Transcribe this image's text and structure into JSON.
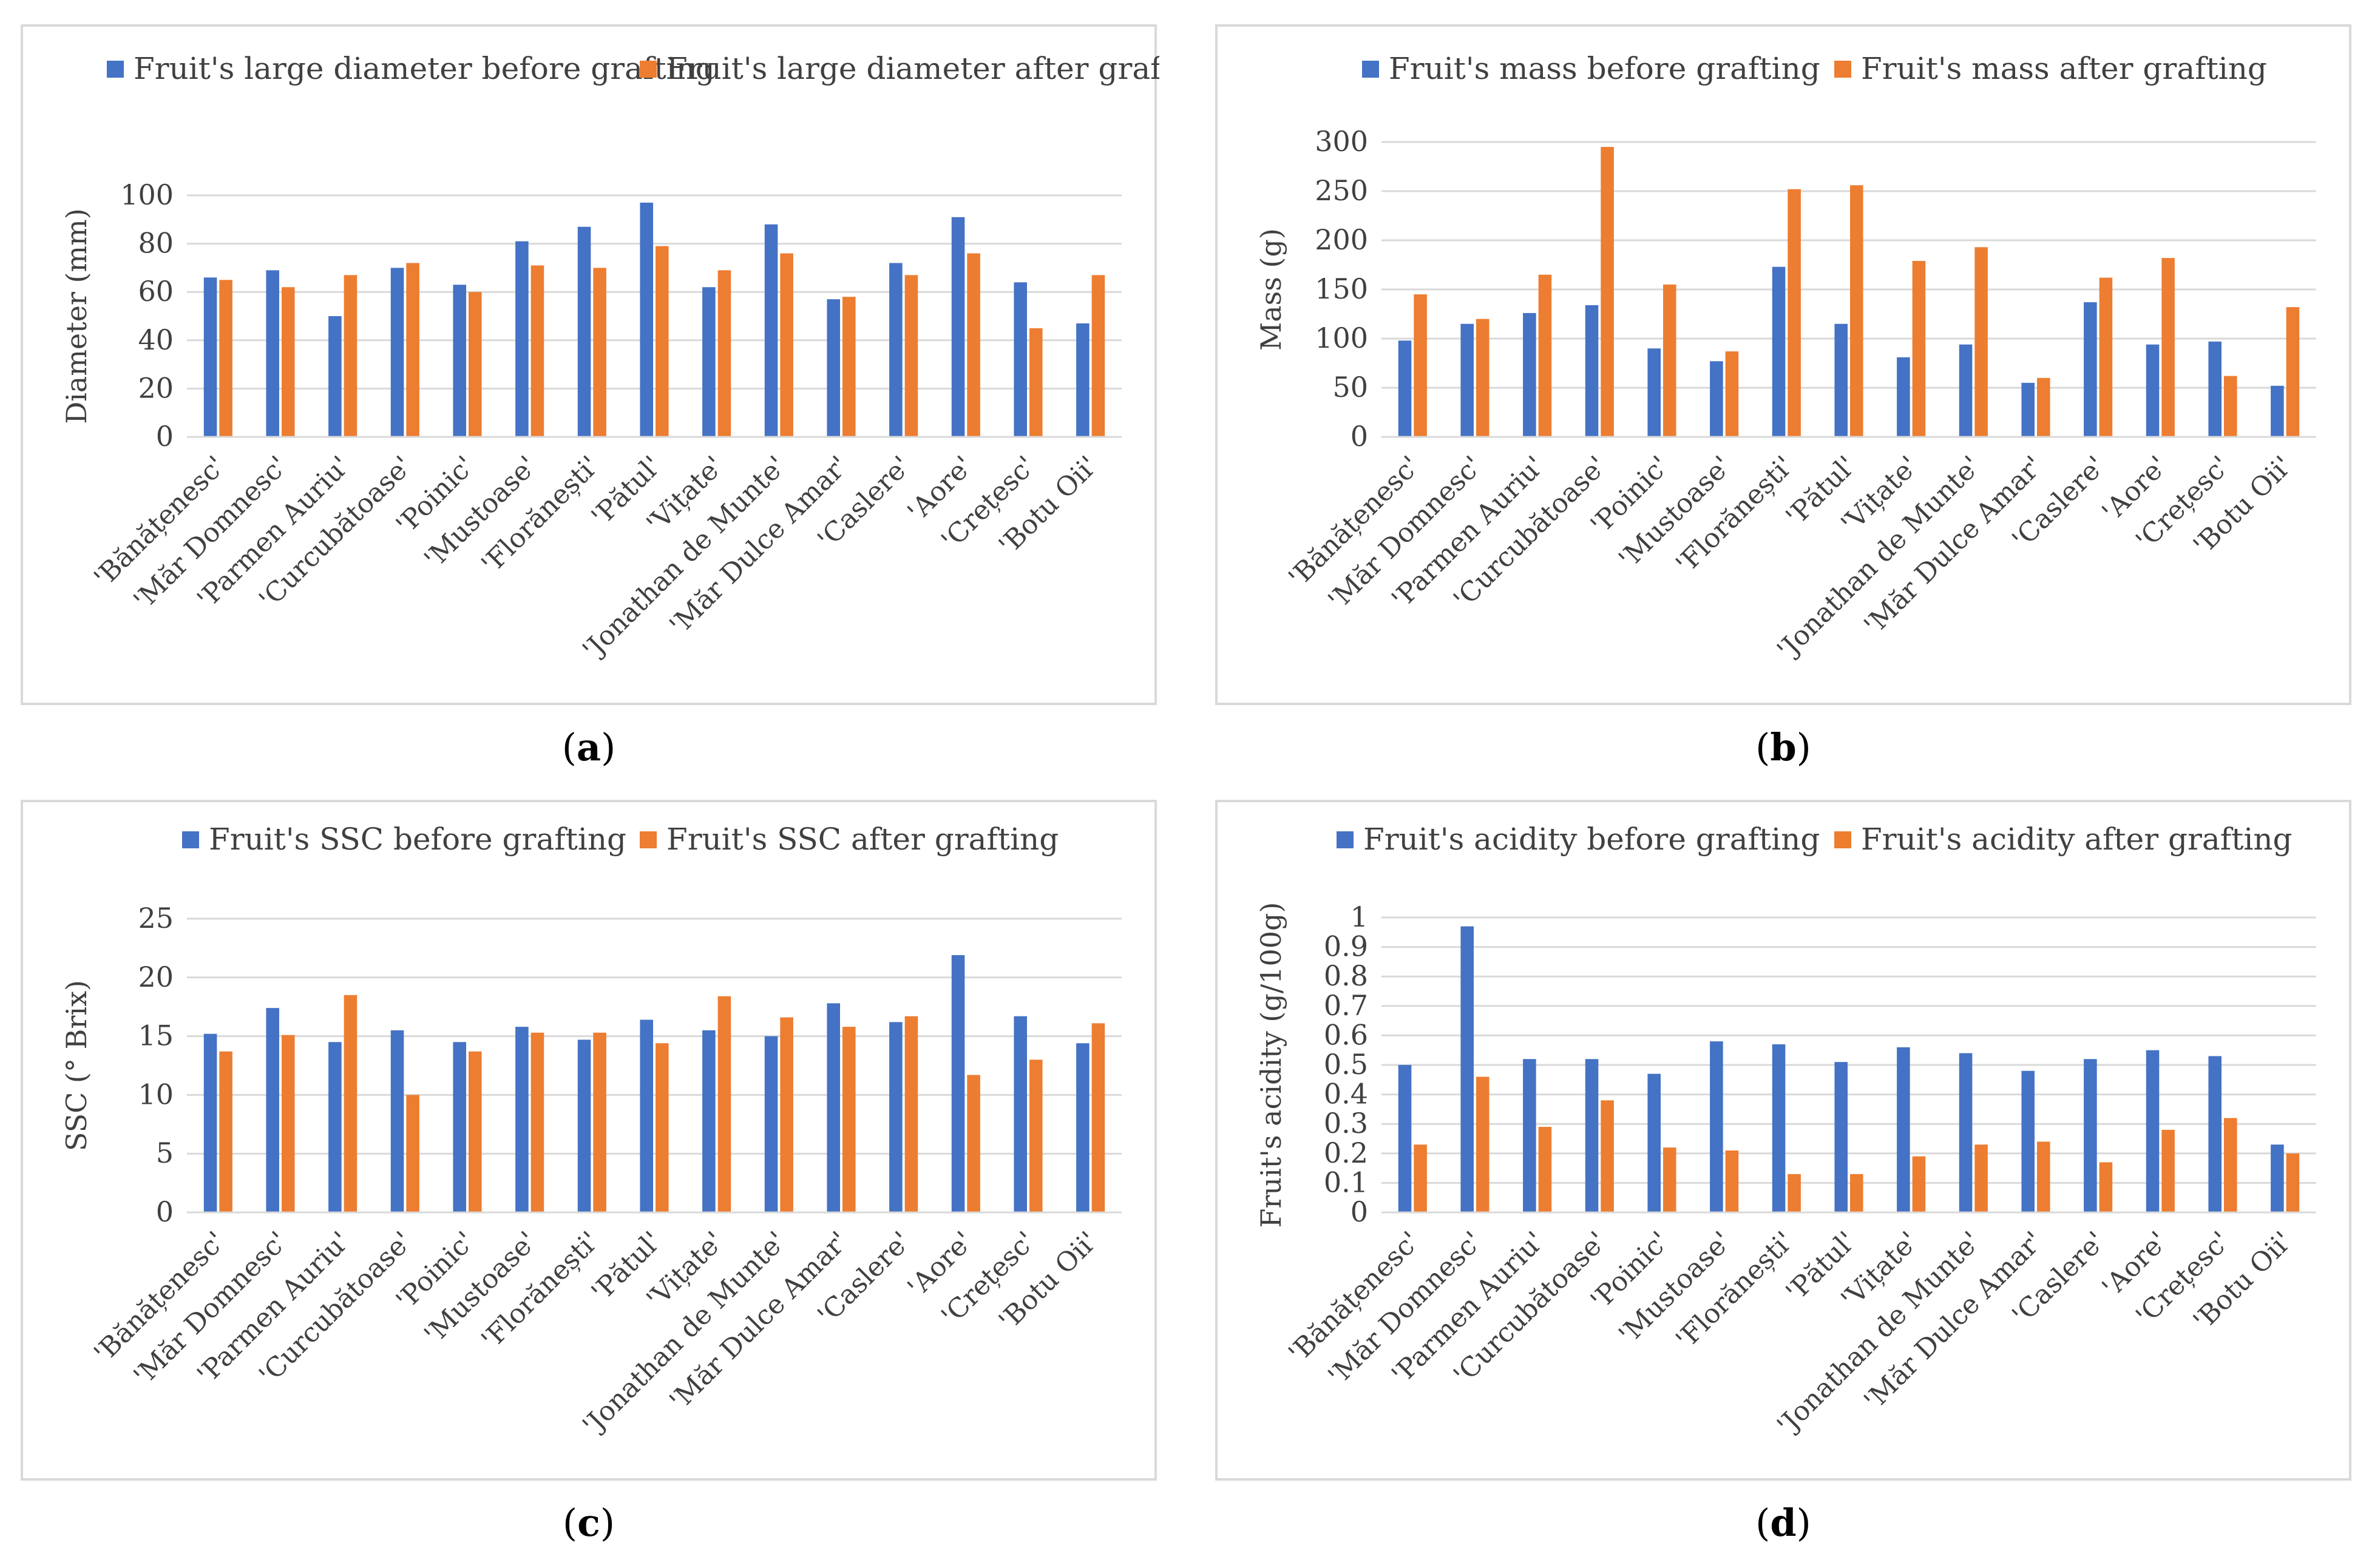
{
  "charts": [
    {
      "type": "bar",
      "panel_label": "a",
      "ylabel": "Diameter (mm)",
      "ylim": [
        0,
        100
      ],
      "yticks": [
        0,
        20,
        40,
        60,
        80,
        100
      ],
      "categories": [
        "'Bănățenesc'",
        "'Măr Domnesc'",
        "'Parmen Auriu'",
        "'Curcubătoase'",
        "'Poinic'",
        "'Mustoase'",
        "'Florănești'",
        "'Pătul'",
        "'Vițate'",
        "'Jonathan de Munte'",
        "'Măr Dulce Amar'",
        "'Caslere'",
        "'Aore'",
        "'Crețesc'",
        "'Botu Oii'"
      ],
      "series": [
        {
          "name": "Fruit's large diameter before grafting",
          "color": "#4472c4",
          "values": [
            66,
            69,
            50,
            70,
            63,
            81,
            87,
            97,
            62,
            88,
            57,
            72,
            91,
            64,
            47
          ]
        },
        {
          "name": "Fruit's large diameter after grafting",
          "color": "#ed7d31",
          "values": [
            65,
            62,
            67,
            72,
            60,
            71,
            70,
            79,
            69,
            76,
            58,
            67,
            76,
            45,
            67
          ]
        }
      ]
    },
    {
      "type": "bar",
      "panel_label": "b",
      "ylabel": "Mass (g)",
      "ylim": [
        0,
        300
      ],
      "yticks": [
        0,
        50,
        100,
        150,
        200,
        250,
        300
      ],
      "categories": [
        "'Bănățenesc'",
        "'Măr Domnesc'",
        "'Parmen Auriu'",
        "'Curcubătoase'",
        "'Poinic'",
        "'Mustoase'",
        "'Florănești'",
        "'Pătul'",
        "'Vițate'",
        "'Jonathan de Munte'",
        "'Măr Dulce Amar'",
        "'Caslere'",
        "'Aore'",
        "'Crețesc'",
        "'Botu Oii'"
      ],
      "series": [
        {
          "name": "Fruit's mass before grafting",
          "color": "#4472c4",
          "values": [
            98,
            115,
            126,
            134,
            90,
            77,
            173,
            115,
            81,
            94,
            55,
            137,
            94,
            97,
            52
          ]
        },
        {
          "name": "Fruit's mass after grafting",
          "color": "#ed7d31",
          "values": [
            145,
            120,
            165,
            295,
            155,
            87,
            252,
            256,
            179,
            193,
            60,
            162,
            182,
            62,
            132
          ]
        }
      ]
    },
    {
      "type": "bar",
      "panel_label": "c",
      "ylabel": "SSC (° Brix)",
      "ylim": [
        0,
        25
      ],
      "yticks": [
        0,
        5,
        10,
        15,
        20,
        25
      ],
      "categories": [
        "'Bănățenesc'",
        "'Măr Domnesc'",
        "'Parmen Auriu'",
        "'Curcubătoase'",
        "'Poinic'",
        "'Mustoase'",
        "'Florănești'",
        "'Pătul'",
        "'Vițate'",
        "'Jonathan de Munte'",
        "'Măr Dulce Amar'",
        "'Caslere'",
        "'Aore'",
        "'Crețesc'",
        "'Botu Oii'"
      ],
      "series": [
        {
          "name": "Fruit's SSC before grafting",
          "color": "#4472c4",
          "values": [
            15.2,
            17.4,
            14.5,
            15.5,
            14.5,
            15.8,
            14.7,
            16.4,
            15.5,
            15.0,
            17.8,
            16.2,
            21.9,
            16.7,
            14.4
          ]
        },
        {
          "name": "Fruit's SSC after grafting",
          "color": "#ed7d31",
          "values": [
            13.7,
            15.1,
            18.5,
            10.0,
            13.7,
            15.3,
            15.3,
            14.4,
            18.4,
            16.6,
            15.8,
            16.7,
            11.7,
            13.0,
            16.1
          ]
        }
      ]
    },
    {
      "type": "bar",
      "panel_label": "d",
      "ylabel": "Fruit's acidity (g/100g)",
      "ylim": [
        0,
        1
      ],
      "yticks": [
        "0",
        "0.1",
        "0.2",
        "0.3",
        "0.4",
        "0.5",
        "0.6",
        "0.7",
        "0.8",
        "0.9",
        "1"
      ],
      "categories": [
        "'Bănățenesc'",
        "'Măr Domnesc'",
        "'Parmen Auriu'",
        "'Curcubătoase'",
        "'Poinic'",
        "'Mustoase'",
        "'Florănești'",
        "'Pătul'",
        "'Vițate'",
        "'Jonathan de Munte'",
        "'Măr Dulce Amar'",
        "'Caslere'",
        "'Aore'",
        "'Crețesc'",
        "'Botu Oii'"
      ],
      "series": [
        {
          "name": "Fruit's acidity before grafting",
          "color": "#4472c4",
          "values": [
            0.5,
            0.97,
            0.52,
            0.52,
            0.47,
            0.58,
            0.57,
            0.51,
            0.56,
            0.54,
            0.48,
            0.52,
            0.55,
            0.53,
            0.23
          ]
        },
        {
          "name": "Fruit's acidity after grafting",
          "color": "#ed7d31",
          "values": [
            0.23,
            0.46,
            0.29,
            0.38,
            0.22,
            0.21,
            0.13,
            0.13,
            0.19,
            0.23,
            0.24,
            0.17,
            0.28,
            0.32,
            0.2
          ]
        }
      ]
    }
  ],
  "chart_data": [
    {
      "type": "bar",
      "title": "",
      "xlabel": "",
      "ylabel": "Diameter (mm)",
      "ylim": [
        0,
        100
      ],
      "categories": [
        "'Bănățenesc'",
        "'Măr Domnesc'",
        "'Parmen Auriu'",
        "'Curcubătoase'",
        "'Poinic'",
        "'Mustoase'",
        "'Florănești'",
        "'Pătul'",
        "'Vițate'",
        "'Jonathan de Munte'",
        "'Măr Dulce Amar'",
        "'Caslere'",
        "'Aore'",
        "'Crețesc'",
        "'Botu Oii'"
      ],
      "series": [
        {
          "name": "Fruit's large diameter before grafting",
          "values": [
            66,
            69,
            50,
            70,
            63,
            81,
            87,
            97,
            62,
            88,
            57,
            72,
            91,
            64,
            47
          ]
        },
        {
          "name": "Fruit's large diameter after grafting",
          "values": [
            65,
            62,
            67,
            72,
            60,
            71,
            70,
            79,
            69,
            76,
            58,
            67,
            76,
            45,
            67
          ]
        }
      ]
    },
    {
      "type": "bar",
      "title": "",
      "xlabel": "",
      "ylabel": "Mass (g)",
      "ylim": [
        0,
        300
      ],
      "categories": [
        "'Bănățenesc'",
        "'Măr Domnesc'",
        "'Parmen Auriu'",
        "'Curcubătoase'",
        "'Poinic'",
        "'Mustoase'",
        "'Florănești'",
        "'Pătul'",
        "'Vițate'",
        "'Jonathan de Munte'",
        "'Măr Dulce Amar'",
        "'Caslere'",
        "'Aore'",
        "'Crețesc'",
        "'Botu Oii'"
      ],
      "series": [
        {
          "name": "Fruit's mass before grafting",
          "values": [
            98,
            115,
            126,
            134,
            90,
            77,
            173,
            115,
            81,
            94,
            55,
            137,
            94,
            97,
            52
          ]
        },
        {
          "name": "Fruit's mass after grafting",
          "values": [
            145,
            120,
            165,
            295,
            155,
            87,
            252,
            256,
            179,
            193,
            60,
            162,
            182,
            62,
            132
          ]
        }
      ]
    },
    {
      "type": "bar",
      "title": "",
      "xlabel": "",
      "ylabel": "SSC (° Brix)",
      "ylim": [
        0,
        25
      ],
      "categories": [
        "'Bănățenesc'",
        "'Măr Domnesc'",
        "'Parmen Auriu'",
        "'Curcubătoase'",
        "'Poinic'",
        "'Mustoase'",
        "'Florănești'",
        "'Pătul'",
        "'Vițate'",
        "'Jonathan de Munte'",
        "'Măr Dulce Amar'",
        "'Caslere'",
        "'Aore'",
        "'Crețesc'",
        "'Botu Oii'"
      ],
      "series": [
        {
          "name": "Fruit's SSC before grafting",
          "values": [
            15.2,
            17.4,
            14.5,
            15.5,
            14.5,
            15.8,
            14.7,
            16.4,
            15.5,
            15.0,
            17.8,
            16.2,
            21.9,
            16.7,
            14.4
          ]
        },
        {
          "name": "Fruit's SSC after grafting",
          "values": [
            13.7,
            15.1,
            18.5,
            10.0,
            13.7,
            15.3,
            15.3,
            14.4,
            18.4,
            16.6,
            15.8,
            16.7,
            11.7,
            13.0,
            16.1
          ]
        }
      ]
    },
    {
      "type": "bar",
      "title": "",
      "xlabel": "",
      "ylabel": "Fruit's acidity (g/100g)",
      "ylim": [
        0,
        1
      ],
      "categories": [
        "'Bănățenesc'",
        "'Măr Domnesc'",
        "'Parmen Auriu'",
        "'Curcubătoase'",
        "'Poinic'",
        "'Mustoase'",
        "'Florănești'",
        "'Pătul'",
        "'Vițate'",
        "'Jonathan de Munte'",
        "'Măr Dulce Amar'",
        "'Caslere'",
        "'Aore'",
        "'Crețesc'",
        "'Botu Oii'"
      ],
      "series": [
        {
          "name": "Fruit's acidity before grafting",
          "values": [
            0.5,
            0.97,
            0.52,
            0.52,
            0.47,
            0.58,
            0.57,
            0.51,
            0.56,
            0.54,
            0.48,
            0.52,
            0.55,
            0.53,
            0.23
          ]
        },
        {
          "name": "Fruit's acidity after grafting",
          "values": [
            0.23,
            0.46,
            0.29,
            0.38,
            0.22,
            0.21,
            0.13,
            0.13,
            0.19,
            0.23,
            0.24,
            0.17,
            0.28,
            0.32,
            0.2
          ]
        }
      ]
    }
  ]
}
